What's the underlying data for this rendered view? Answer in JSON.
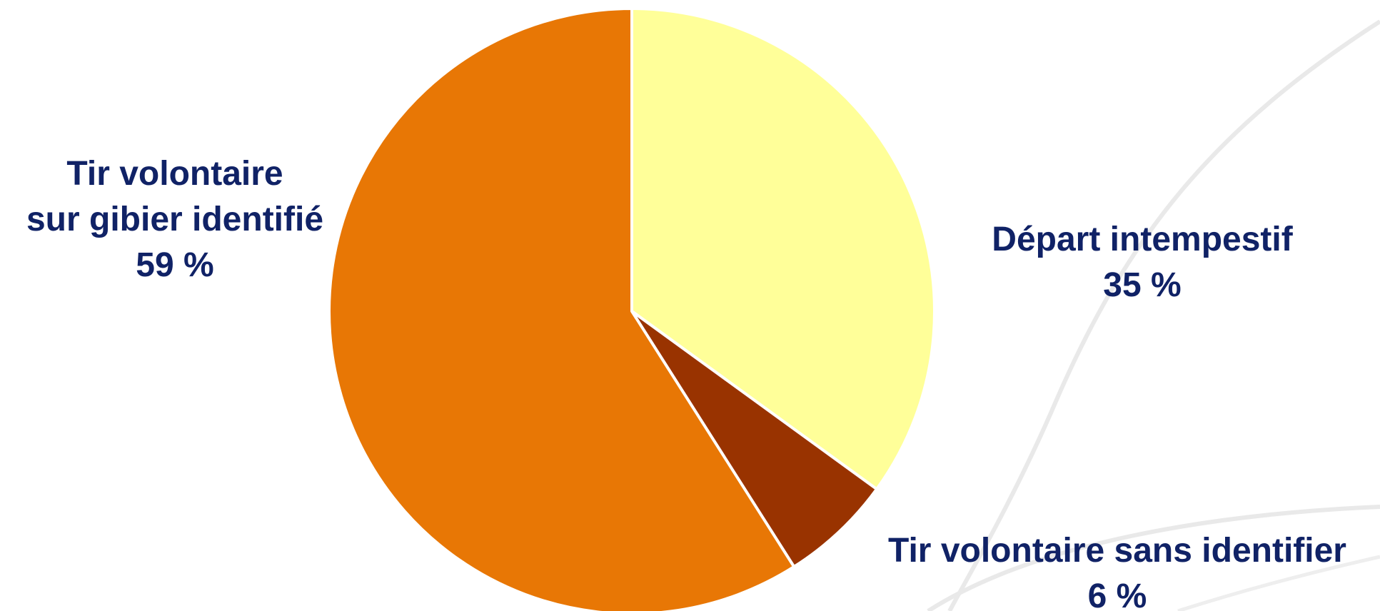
{
  "chart_data": {
    "type": "pie",
    "title": "",
    "slices": [
      {
        "label": "Départ intempestif",
        "value": 35,
        "value_text": "35 %",
        "color": "#FFFF99"
      },
      {
        "label": "Tir volontaire sans identifier",
        "value": 6,
        "value_text": "6 %",
        "color": "#993300"
      },
      {
        "label": "Tir volontaire sur gibier identifié",
        "value": 59,
        "value_text": "59 %",
        "color": "#E87705"
      }
    ],
    "label_lines": {
      "identified": [
        "Tir volontaire",
        "sur gibier identifié",
        "59 %"
      ],
      "accidental": [
        "Départ intempestif",
        "35 %"
      ],
      "unidentified": [
        "Tir volontaire sans identifier",
        "6 %"
      ]
    },
    "label_color": "#102266",
    "start_angle": "12 o'clock",
    "direction": "clockwise",
    "legend": "none"
  }
}
